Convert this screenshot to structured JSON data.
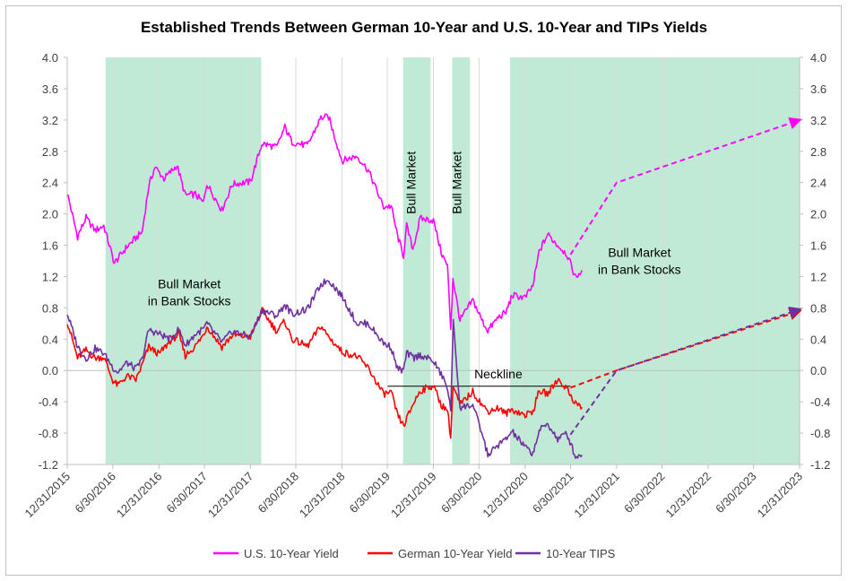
{
  "chart_data": {
    "type": "line",
    "title": "Established Trends Between German 10-Year and U.S. 10-Year and TIPs Yields",
    "xlabel": "",
    "ylabel": "",
    "ylim": [
      -1.2,
      4.0
    ],
    "y_ticks": [
      "4.0",
      "3.6",
      "3.2",
      "2.8",
      "2.4",
      "2.0",
      "1.6",
      "1.2",
      "0.8",
      "0.4",
      "0.0",
      "-0.4",
      "-0.8",
      "-1.2"
    ],
    "x_range": [
      "2015-12-31",
      "2023-12-31"
    ],
    "x_ticks": [
      "12/31/2015",
      "6/30/2016",
      "12/31/2016",
      "6/30/2017",
      "12/31/2017",
      "6/30/2018",
      "12/31/2018",
      "6/30/2019",
      "12/31/2019",
      "6/30/2020",
      "12/31/2020",
      "6/30/2021",
      "12/31/2021",
      "6/30/2022",
      "12/31/2022",
      "6/30/2023",
      "12/31/2023"
    ],
    "grid": "vertical",
    "legend_position": "bottom",
    "shaded_regions": [
      {
        "start": "2016-06-01",
        "end": "2018-02-12"
      },
      {
        "start": "2019-09-01",
        "end": "2019-12-20"
      },
      {
        "start": "2020-03-15",
        "end": "2020-05-25"
      },
      {
        "start": "2020-11-01",
        "end": "2023-12-31"
      }
    ],
    "annotations": [
      {
        "text": "Bull Market",
        "line2": "in Bank Stocks",
        "x": "2017-05-01",
        "y": 1.05
      },
      {
        "text": "Bull Market",
        "vertical": true,
        "x": "2019-10-20",
        "y": 2.4
      },
      {
        "text": "Bull Market",
        "vertical": true,
        "x": "2020-04-20",
        "y": 2.4
      },
      {
        "text": "Bull Market",
        "line2": "in Bank Stocks",
        "x": "2022-04-01",
        "y": 1.45
      },
      {
        "text": "Neckline",
        "x": "2020-09-15",
        "y": -0.1
      }
    ],
    "neckline": {
      "x_start": "2019-07-01",
      "x_end": "2021-06-30",
      "y": -0.2
    },
    "series": [
      {
        "name": "U.S. 10-Year Yield",
        "color": "#ff00ff",
        "points": [
          [
            "2015-12-31",
            2.27
          ],
          [
            "2016-02-10",
            1.71
          ],
          [
            "2016-03-15",
            1.95
          ],
          [
            "2016-04-20",
            1.79
          ],
          [
            "2016-05-25",
            1.85
          ],
          [
            "2016-07-06",
            1.37
          ],
          [
            "2016-08-25",
            1.58
          ],
          [
            "2016-10-25",
            1.77
          ],
          [
            "2016-11-20",
            2.35
          ],
          [
            "2016-12-15",
            2.6
          ],
          [
            "2017-01-20",
            2.45
          ],
          [
            "2017-03-13",
            2.62
          ],
          [
            "2017-04-15",
            2.24
          ],
          [
            "2017-05-25",
            2.25
          ],
          [
            "2017-06-26",
            2.14
          ],
          [
            "2017-07-10",
            2.39
          ],
          [
            "2017-09-08",
            2.05
          ],
          [
            "2017-10-20",
            2.38
          ],
          [
            "2017-12-31",
            2.41
          ],
          [
            "2018-02-15",
            2.9
          ],
          [
            "2018-04-15",
            2.85
          ],
          [
            "2018-05-17",
            3.11
          ],
          [
            "2018-06-15",
            2.92
          ],
          [
            "2018-08-15",
            2.87
          ],
          [
            "2018-10-08",
            3.23
          ],
          [
            "2018-11-08",
            3.24
          ],
          [
            "2018-12-31",
            2.68
          ],
          [
            "2019-03-01",
            2.74
          ],
          [
            "2019-04-15",
            2.56
          ],
          [
            "2019-06-15",
            2.09
          ],
          [
            "2019-07-15",
            2.1
          ],
          [
            "2019-08-10",
            1.72
          ],
          [
            "2019-09-03",
            1.46
          ],
          [
            "2019-09-15",
            1.85
          ],
          [
            "2019-10-10",
            1.55
          ],
          [
            "2019-11-08",
            1.94
          ],
          [
            "2019-12-31",
            1.92
          ],
          [
            "2020-01-31",
            1.51
          ],
          [
            "2020-02-25",
            1.33
          ],
          [
            "2020-03-09",
            0.54
          ],
          [
            "2020-03-18",
            1.18
          ],
          [
            "2020-04-15",
            0.64
          ],
          [
            "2020-06-05",
            0.9
          ],
          [
            "2020-07-15",
            0.62
          ],
          [
            "2020-08-04",
            0.51
          ],
          [
            "2020-09-15",
            0.68
          ],
          [
            "2020-10-15",
            0.74
          ],
          [
            "2020-11-09",
            0.96
          ],
          [
            "2020-12-31",
            0.93
          ],
          [
            "2021-01-31",
            1.08
          ],
          [
            "2021-02-25",
            1.52
          ],
          [
            "2021-03-31",
            1.74
          ],
          [
            "2021-05-10",
            1.6
          ],
          [
            "2021-06-15",
            1.49
          ],
          [
            "2021-07-20",
            1.19
          ],
          [
            "2021-08-15",
            1.28
          ]
        ]
      },
      {
        "name": "German 10-Year Yield",
        "color": "#ff0000",
        "points": [
          [
            "2015-12-31",
            0.63
          ],
          [
            "2016-02-10",
            0.16
          ],
          [
            "2016-03-15",
            0.26
          ],
          [
            "2016-04-20",
            0.16
          ],
          [
            "2016-05-25",
            0.17
          ],
          [
            "2016-06-30",
            -0.13
          ],
          [
            "2016-07-20",
            -0.19
          ],
          [
            "2016-08-25",
            -0.07
          ],
          [
            "2016-09-30",
            -0.12
          ],
          [
            "2016-10-25",
            0.07
          ],
          [
            "2016-11-20",
            0.3
          ],
          [
            "2016-12-31",
            0.21
          ],
          [
            "2017-02-15",
            0.38
          ],
          [
            "2017-03-20",
            0.46
          ],
          [
            "2017-04-15",
            0.19
          ],
          [
            "2017-05-25",
            0.31
          ],
          [
            "2017-06-30",
            0.47
          ],
          [
            "2017-07-10",
            0.57
          ],
          [
            "2017-09-08",
            0.3
          ],
          [
            "2017-10-20",
            0.45
          ],
          [
            "2017-12-31",
            0.43
          ],
          [
            "2018-02-15",
            0.77
          ],
          [
            "2018-04-15",
            0.5
          ],
          [
            "2018-05-17",
            0.63
          ],
          [
            "2018-06-15",
            0.4
          ],
          [
            "2018-08-15",
            0.31
          ],
          [
            "2018-10-08",
            0.57
          ],
          [
            "2018-11-08",
            0.43
          ],
          [
            "2018-12-31",
            0.24
          ],
          [
            "2019-03-01",
            0.18
          ],
          [
            "2019-04-15",
            0.03
          ],
          [
            "2019-06-15",
            -0.3
          ],
          [
            "2019-07-15",
            -0.28
          ],
          [
            "2019-08-10",
            -0.57
          ],
          [
            "2019-09-03",
            -0.71
          ],
          [
            "2019-10-15",
            -0.4
          ],
          [
            "2019-11-08",
            -0.26
          ],
          [
            "2019-12-31",
            -0.19
          ],
          [
            "2020-01-31",
            -0.44
          ],
          [
            "2020-02-25",
            -0.5
          ],
          [
            "2020-03-09",
            -0.85
          ],
          [
            "2020-03-18",
            -0.2
          ],
          [
            "2020-04-15",
            -0.44
          ],
          [
            "2020-06-05",
            -0.27
          ],
          [
            "2020-07-15",
            -0.45
          ],
          [
            "2020-08-04",
            -0.52
          ],
          [
            "2020-09-15",
            -0.48
          ],
          [
            "2020-10-15",
            -0.55
          ],
          [
            "2020-11-09",
            -0.5
          ],
          [
            "2020-12-31",
            -0.57
          ],
          [
            "2021-01-31",
            -0.52
          ],
          [
            "2021-02-25",
            -0.26
          ],
          [
            "2021-03-31",
            -0.3
          ],
          [
            "2021-05-10",
            -0.11
          ],
          [
            "2021-06-15",
            -0.23
          ],
          [
            "2021-07-20",
            -0.42
          ],
          [
            "2021-08-15",
            -0.47
          ]
        ]
      },
      {
        "name": "10-Year TIPS",
        "color": "#7030a0",
        "points": [
          [
            "2015-12-31",
            0.73
          ],
          [
            "2016-02-10",
            0.31
          ],
          [
            "2016-03-15",
            0.15
          ],
          [
            "2016-04-20",
            0.28
          ],
          [
            "2016-05-25",
            0.22
          ],
          [
            "2016-06-30",
            0.04
          ],
          [
            "2016-07-20",
            -0.02
          ],
          [
            "2016-08-25",
            0.1
          ],
          [
            "2016-09-30",
            0.02
          ],
          [
            "2016-10-25",
            0.14
          ],
          [
            "2016-11-20",
            0.52
          ],
          [
            "2016-12-31",
            0.47
          ],
          [
            "2017-02-15",
            0.4
          ],
          [
            "2017-03-20",
            0.53
          ],
          [
            "2017-04-15",
            0.32
          ],
          [
            "2017-05-25",
            0.46
          ],
          [
            "2017-06-30",
            0.54
          ],
          [
            "2017-07-10",
            0.6
          ],
          [
            "2017-09-08",
            0.36
          ],
          [
            "2017-10-20",
            0.5
          ],
          [
            "2017-12-31",
            0.43
          ],
          [
            "2018-02-15",
            0.77
          ],
          [
            "2018-04-15",
            0.7
          ],
          [
            "2018-05-17",
            0.84
          ],
          [
            "2018-06-15",
            0.72
          ],
          [
            "2018-08-15",
            0.78
          ],
          [
            "2018-10-08",
            1.1
          ],
          [
            "2018-11-08",
            1.16
          ],
          [
            "2018-12-31",
            0.95
          ],
          [
            "2019-03-01",
            0.6
          ],
          [
            "2019-04-15",
            0.6
          ],
          [
            "2019-06-15",
            0.35
          ],
          [
            "2019-07-15",
            0.3
          ],
          [
            "2019-08-10",
            0.02
          ],
          [
            "2019-09-03",
            0.0
          ],
          [
            "2019-09-15",
            0.22
          ],
          [
            "2019-10-15",
            0.16
          ],
          [
            "2019-11-08",
            0.2
          ],
          [
            "2019-12-31",
            0.12
          ],
          [
            "2020-01-31",
            -0.05
          ],
          [
            "2020-02-25",
            -0.22
          ],
          [
            "2020-03-09",
            -0.51
          ],
          [
            "2020-03-19",
            0.62
          ],
          [
            "2020-04-15",
            -0.47
          ],
          [
            "2020-06-05",
            -0.44
          ],
          [
            "2020-07-15",
            -0.84
          ],
          [
            "2020-08-04",
            -1.08
          ],
          [
            "2020-09-15",
            -0.95
          ],
          [
            "2020-10-15",
            -0.88
          ],
          [
            "2020-11-09",
            -0.78
          ],
          [
            "2020-12-31",
            -0.98
          ],
          [
            "2021-01-31",
            -1.06
          ],
          [
            "2021-02-25",
            -0.77
          ],
          [
            "2021-03-31",
            -0.68
          ],
          [
            "2021-05-10",
            -0.88
          ],
          [
            "2021-06-15",
            -0.8
          ],
          [
            "2021-07-20",
            -1.1
          ],
          [
            "2021-08-15",
            -1.08
          ]
        ]
      }
    ],
    "projections": [
      {
        "name": "U.S. 10-Year Yield",
        "color": "#ff00ff",
        "dashed": true,
        "arrow": true,
        "points": [
          [
            "2021-06-30",
            1.48
          ],
          [
            "2021-12-31",
            2.4
          ],
          [
            "2023-12-31",
            3.2
          ]
        ]
      },
      {
        "name": "German 10-Year Yield",
        "color": "#ff0000",
        "dashed": true,
        "arrow": true,
        "points": [
          [
            "2021-06-30",
            -0.22
          ],
          [
            "2021-12-31",
            0.0
          ],
          [
            "2023-12-31",
            0.76
          ]
        ]
      },
      {
        "name": "10-Year TIPS",
        "color": "#7030a0",
        "dashed": true,
        "arrow": true,
        "points": [
          [
            "2021-06-30",
            -0.82
          ],
          [
            "2021-12-31",
            0.0
          ],
          [
            "2023-12-31",
            0.78
          ]
        ]
      }
    ]
  }
}
